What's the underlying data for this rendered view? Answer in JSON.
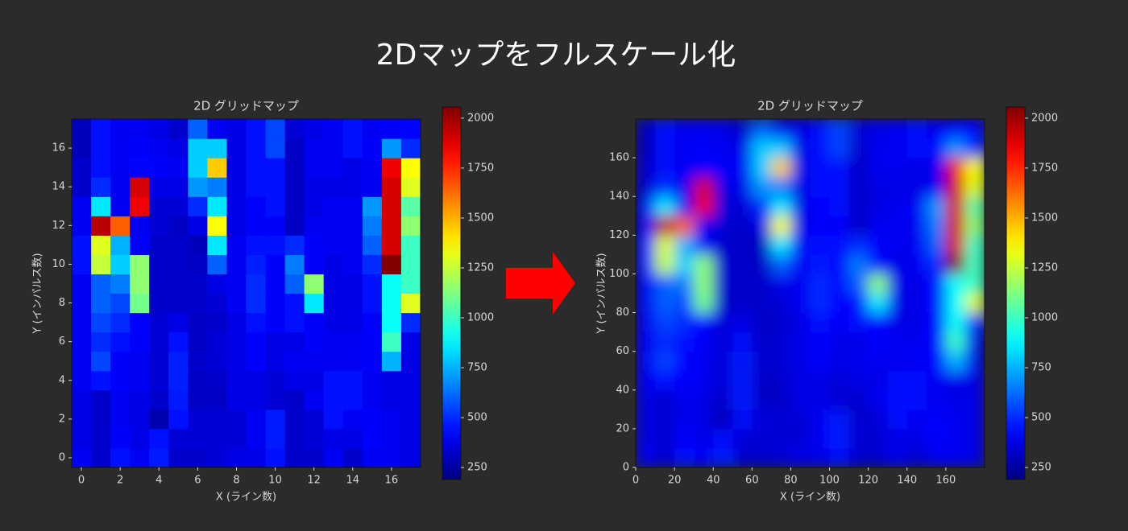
{
  "title": "2Dマップをフルスケール化",
  "chart_data": [
    {
      "type": "heatmap",
      "title": "2D グリッドマップ",
      "xlabel": "X (ライン数)",
      "ylabel": "Y (インパルス数)",
      "x": [
        0,
        1,
        2,
        3,
        4,
        5,
        6,
        7,
        8,
        9,
        10,
        11,
        12,
        13,
        14,
        15,
        16,
        17
      ],
      "y": [
        0,
        1,
        2,
        3,
        4,
        5,
        6,
        7,
        8,
        9,
        10,
        11,
        12,
        13,
        14,
        15,
        16,
        17
      ],
      "xlim": [
        -0.5,
        17.5
      ],
      "ylim": [
        -0.5,
        17.5
      ],
      "xticks": [
        0,
        2,
        4,
        6,
        8,
        10,
        12,
        14,
        16
      ],
      "yticks": [
        0,
        2,
        4,
        6,
        8,
        10,
        12,
        14,
        16
      ],
      "cmap": "jet",
      "interpolation": "nearest",
      "clim": [
        190,
        2056
      ],
      "cticks": [
        250,
        500,
        750,
        1000,
        1250,
        1500,
        1750,
        2000
      ],
      "z": [
        [
          400,
          330,
          450,
          400,
          470,
          330,
          330,
          350,
          380,
          380,
          450,
          330,
          330,
          400,
          330,
          400,
          400,
          380
        ],
        [
          380,
          330,
          420,
          380,
          450,
          350,
          350,
          350,
          350,
          400,
          470,
          330,
          350,
          380,
          380,
          420,
          400,
          380
        ],
        [
          380,
          330,
          400,
          380,
          280,
          450,
          350,
          350,
          350,
          400,
          470,
          330,
          350,
          450,
          400,
          420,
          400,
          380
        ],
        [
          380,
          330,
          400,
          380,
          330,
          470,
          320,
          320,
          380,
          380,
          350,
          330,
          400,
          450,
          450,
          400,
          380,
          380
        ],
        [
          400,
          450,
          420,
          400,
          350,
          480,
          320,
          330,
          380,
          380,
          350,
          380,
          380,
          450,
          450,
          400,
          380,
          380
        ],
        [
          400,
          550,
          420,
          400,
          350,
          480,
          330,
          350,
          380,
          420,
          380,
          400,
          400,
          400,
          400,
          420,
          750,
          380
        ],
        [
          400,
          500,
          450,
          420,
          350,
          450,
          320,
          350,
          380,
          420,
          380,
          380,
          420,
          400,
          400,
          420,
          1000,
          380
        ],
        [
          400,
          550,
          500,
          420,
          350,
          380,
          320,
          330,
          380,
          450,
          420,
          450,
          420,
          380,
          380,
          420,
          900,
          500
        ],
        [
          400,
          600,
          550,
          1100,
          330,
          330,
          330,
          350,
          400,
          500,
          420,
          450,
          850,
          380,
          380,
          450,
          900,
          1300
        ],
        [
          400,
          600,
          650,
          1150,
          330,
          330,
          330,
          380,
          400,
          500,
          420,
          600,
          1150,
          380,
          380,
          450,
          900,
          1000
        ],
        [
          450,
          1250,
          800,
          1150,
          330,
          330,
          320,
          600,
          400,
          480,
          420,
          650,
          420,
          380,
          400,
          500,
          2050,
          1000
        ],
        [
          450,
          1300,
          750,
          420,
          330,
          330,
          300,
          850,
          400,
          450,
          450,
          500,
          420,
          400,
          400,
          600,
          1900,
          1000
        ],
        [
          400,
          1950,
          1650,
          400,
          350,
          320,
          380,
          1350,
          380,
          420,
          420,
          320,
          400,
          400,
          400,
          650,
          1900,
          1150
        ],
        [
          400,
          850,
          400,
          1850,
          350,
          350,
          500,
          850,
          380,
          420,
          450,
          320,
          380,
          400,
          400,
          700,
          1900,
          1050
        ],
        [
          330,
          500,
          400,
          1900,
          380,
          380,
          700,
          650,
          380,
          450,
          450,
          320,
          380,
          380,
          380,
          400,
          1900,
          1300
        ],
        [
          330,
          450,
          400,
          430,
          420,
          400,
          800,
          1450,
          380,
          450,
          450,
          320,
          400,
          400,
          380,
          400,
          1850,
          1350
        ],
        [
          300,
          450,
          400,
          420,
          400,
          380,
          800,
          800,
          380,
          450,
          550,
          320,
          400,
          400,
          450,
          420,
          700,
          500
        ],
        [
          300,
          450,
          400,
          400,
          380,
          330,
          600,
          400,
          380,
          450,
          550,
          350,
          380,
          400,
          450,
          400,
          420,
          430
        ]
      ]
    },
    {
      "type": "heatmap",
      "title": "2D グリッドマップ",
      "xlabel": "X (ライン数)",
      "ylabel": "Y (インパルス数)",
      "x": [
        5,
        15,
        25,
        35,
        45,
        55,
        65,
        75,
        85,
        95,
        105,
        115,
        125,
        135,
        145,
        155,
        165,
        175
      ],
      "y": [
        5,
        15,
        25,
        35,
        45,
        55,
        65,
        75,
        85,
        95,
        105,
        115,
        125,
        135,
        145,
        155,
        165,
        175
      ],
      "xlim": [
        0,
        180
      ],
      "ylim": [
        0,
        180
      ],
      "xticks": [
        0,
        20,
        40,
        60,
        80,
        100,
        120,
        140,
        160
      ],
      "yticks": [
        0,
        20,
        40,
        60,
        80,
        100,
        120,
        140,
        160
      ],
      "cmap": "jet",
      "interpolation": "smooth",
      "clim": [
        190,
        2056
      ],
      "cticks": [
        250,
        500,
        750,
        1000,
        1250,
        1500,
        1750,
        2000
      ],
      "z": [
        [
          400,
          330,
          450,
          400,
          470,
          330,
          330,
          350,
          380,
          380,
          450,
          330,
          330,
          400,
          330,
          400,
          400,
          380
        ],
        [
          380,
          330,
          420,
          380,
          450,
          350,
          350,
          350,
          350,
          400,
          470,
          330,
          350,
          380,
          380,
          420,
          400,
          380
        ],
        [
          380,
          330,
          400,
          380,
          280,
          450,
          350,
          350,
          350,
          400,
          470,
          330,
          350,
          450,
          400,
          420,
          400,
          380
        ],
        [
          380,
          330,
          400,
          380,
          330,
          470,
          320,
          320,
          380,
          380,
          350,
          330,
          400,
          450,
          450,
          400,
          380,
          380
        ],
        [
          400,
          450,
          420,
          400,
          350,
          480,
          320,
          330,
          380,
          380,
          350,
          380,
          380,
          450,
          450,
          400,
          380,
          380
        ],
        [
          400,
          550,
          420,
          400,
          350,
          480,
          330,
          350,
          380,
          420,
          380,
          400,
          400,
          400,
          400,
          420,
          750,
          380
        ],
        [
          400,
          500,
          450,
          420,
          350,
          450,
          320,
          350,
          380,
          420,
          380,
          380,
          420,
          400,
          400,
          420,
          1000,
          380
        ],
        [
          400,
          550,
          500,
          420,
          350,
          380,
          320,
          330,
          380,
          450,
          420,
          450,
          420,
          380,
          380,
          420,
          900,
          500
        ],
        [
          400,
          600,
          550,
          1100,
          330,
          330,
          330,
          350,
          400,
          500,
          420,
          450,
          850,
          380,
          380,
          450,
          900,
          1300
        ],
        [
          400,
          600,
          650,
          1150,
          330,
          330,
          330,
          380,
          400,
          500,
          420,
          600,
          1150,
          380,
          380,
          450,
          900,
          1000
        ],
        [
          450,
          1250,
          800,
          1150,
          330,
          330,
          320,
          600,
          400,
          480,
          420,
          650,
          420,
          380,
          400,
          500,
          2050,
          1000
        ],
        [
          450,
          1300,
          750,
          420,
          330,
          330,
          300,
          850,
          400,
          450,
          450,
          500,
          420,
          400,
          400,
          600,
          1900,
          1000
        ],
        [
          400,
          1950,
          1650,
          400,
          350,
          320,
          380,
          1350,
          380,
          420,
          420,
          320,
          400,
          400,
          400,
          650,
          1900,
          1150
        ],
        [
          400,
          850,
          400,
          1850,
          350,
          350,
          500,
          850,
          380,
          420,
          450,
          320,
          380,
          400,
          400,
          700,
          1900,
          1050
        ],
        [
          330,
          500,
          400,
          1900,
          380,
          380,
          700,
          650,
          380,
          450,
          450,
          320,
          380,
          380,
          380,
          400,
          1900,
          1300
        ],
        [
          330,
          450,
          400,
          430,
          420,
          400,
          800,
          1450,
          380,
          450,
          450,
          320,
          400,
          400,
          380,
          400,
          1850,
          1350
        ],
        [
          300,
          450,
          400,
          420,
          400,
          380,
          800,
          800,
          380,
          450,
          550,
          320,
          400,
          400,
          450,
          420,
          700,
          500
        ],
        [
          300,
          450,
          400,
          400,
          380,
          330,
          600,
          400,
          380,
          450,
          550,
          350,
          380,
          400,
          450,
          400,
          420,
          430
        ]
      ]
    }
  ]
}
